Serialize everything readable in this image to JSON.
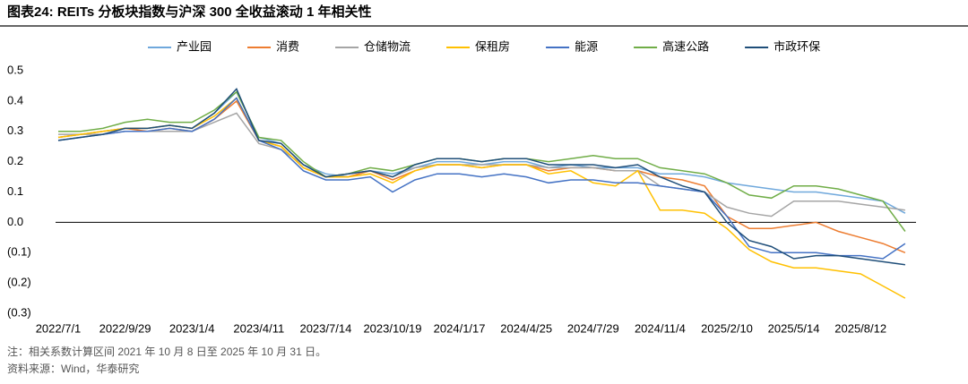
{
  "chart_data": {
    "type": "line",
    "title": "图表24:  REITs 分板块指数与沪深 300 全收益滚动 1 年相关性",
    "categories": [
      "2022/7/1",
      null,
      null,
      "2022/9/29",
      null,
      null,
      "2023/1/4",
      null,
      null,
      "2023/4/11",
      null,
      null,
      "2023/7/14",
      null,
      null,
      "2023/10/19",
      null,
      null,
      "2024/1/17",
      null,
      null,
      "2024/4/25",
      null,
      null,
      "2024/7/29",
      null,
      null,
      "2024/11/4",
      null,
      null,
      "2025/2/10",
      null,
      null,
      "2025/5/14",
      null,
      null,
      "2025/8/12",
      null,
      null
    ],
    "series": [
      {
        "name": "产业园",
        "color": "#6fa8dc",
        "values": [
          0.28,
          0.29,
          0.3,
          0.31,
          0.31,
          0.32,
          0.31,
          0.36,
          0.43,
          0.28,
          0.26,
          0.19,
          0.16,
          0.15,
          0.17,
          0.16,
          0.18,
          0.2,
          0.2,
          0.19,
          0.2,
          0.2,
          0.18,
          0.19,
          0.18,
          0.18,
          0.18,
          0.16,
          0.16,
          0.15,
          0.13,
          0.12,
          0.11,
          0.1,
          0.1,
          0.09,
          0.08,
          0.07,
          0.03
        ]
      },
      {
        "name": "消费",
        "color": "#ed7d31",
        "values": [
          0.28,
          0.29,
          0.3,
          0.31,
          0.3,
          0.31,
          0.3,
          0.34,
          0.4,
          0.27,
          0.25,
          0.18,
          0.15,
          0.15,
          0.17,
          0.14,
          0.17,
          0.19,
          0.19,
          0.18,
          0.19,
          0.19,
          0.17,
          0.18,
          0.18,
          0.17,
          0.17,
          0.15,
          0.14,
          0.12,
          0.02,
          -0.02,
          -0.02,
          -0.01,
          0.0,
          -0.03,
          -0.05,
          -0.07,
          -0.1
        ]
      },
      {
        "name": "仓储物流",
        "color": "#a5a5a5",
        "values": [
          0.29,
          0.29,
          0.29,
          0.3,
          0.3,
          0.3,
          0.3,
          0.33,
          0.36,
          0.26,
          0.24,
          0.19,
          0.15,
          0.16,
          0.17,
          0.15,
          0.18,
          0.19,
          0.19,
          0.19,
          0.19,
          0.19,
          0.18,
          0.18,
          0.18,
          0.17,
          0.17,
          0.12,
          0.11,
          0.1,
          0.05,
          0.03,
          0.02,
          0.07,
          0.07,
          0.07,
          0.06,
          0.05,
          0.04
        ]
      },
      {
        "name": "保租房",
        "color": "#ffc000",
        "values": [
          0.28,
          0.29,
          0.3,
          0.31,
          0.31,
          0.32,
          0.31,
          0.35,
          0.41,
          0.27,
          0.25,
          0.18,
          0.15,
          0.15,
          0.16,
          0.13,
          0.17,
          0.19,
          0.19,
          0.18,
          0.19,
          0.19,
          0.16,
          0.17,
          0.13,
          0.12,
          0.17,
          0.04,
          0.04,
          0.03,
          -0.02,
          -0.09,
          -0.13,
          -0.15,
          -0.15,
          -0.16,
          -0.17,
          -0.21,
          -0.25
        ]
      },
      {
        "name": "能源",
        "color": "#4472c4",
        "values": [
          0.27,
          0.28,
          0.29,
          0.3,
          0.3,
          0.31,
          0.3,
          0.34,
          0.41,
          0.27,
          0.24,
          0.17,
          0.14,
          0.14,
          0.15,
          0.1,
          0.14,
          0.16,
          0.16,
          0.15,
          0.16,
          0.15,
          0.13,
          0.14,
          0.14,
          0.13,
          0.13,
          0.12,
          0.11,
          0.1,
          0.02,
          -0.08,
          -0.1,
          -0.1,
          -0.1,
          -0.11,
          -0.11,
          -0.12,
          -0.07
        ]
      },
      {
        "name": "高速公路",
        "color": "#70ad47",
        "values": [
          0.3,
          0.3,
          0.31,
          0.33,
          0.34,
          0.33,
          0.33,
          0.37,
          0.43,
          0.28,
          0.27,
          0.2,
          0.15,
          0.16,
          0.18,
          0.17,
          0.19,
          0.21,
          0.21,
          0.2,
          0.21,
          0.21,
          0.2,
          0.21,
          0.22,
          0.21,
          0.21,
          0.18,
          0.17,
          0.16,
          0.13,
          0.09,
          0.08,
          0.12,
          0.12,
          0.11,
          0.09,
          0.07,
          -0.03
        ]
      },
      {
        "name": "市政环保",
        "color": "#1f4e79",
        "values": [
          0.27,
          0.28,
          0.29,
          0.31,
          0.31,
          0.32,
          0.31,
          0.36,
          0.44,
          0.27,
          0.26,
          0.19,
          0.15,
          0.16,
          0.17,
          0.15,
          0.19,
          0.21,
          0.21,
          0.2,
          0.21,
          0.21,
          0.19,
          0.19,
          0.19,
          0.18,
          0.19,
          0.15,
          0.12,
          0.1,
          0.0,
          -0.06,
          -0.08,
          -0.12,
          -0.11,
          -0.11,
          -0.12,
          -0.13,
          -0.14
        ]
      }
    ],
    "ylim": [
      -0.3,
      0.5
    ],
    "yticks": [
      0.5,
      0.4,
      0.3,
      0.2,
      0.1,
      {
        "value": 0,
        "label": "0.0"
      },
      {
        "value": -0.1,
        "label": "(0.1)"
      },
      {
        "value": -0.2,
        "label": "(0.2)"
      },
      {
        "value": -0.3,
        "label": "(0.3)"
      }
    ],
    "note": "注：相关系数计算区间 2021 年 10 月 8 日至 2025 年 10 月 31 日。",
    "source": "资料来源：Wind，华泰研究"
  }
}
